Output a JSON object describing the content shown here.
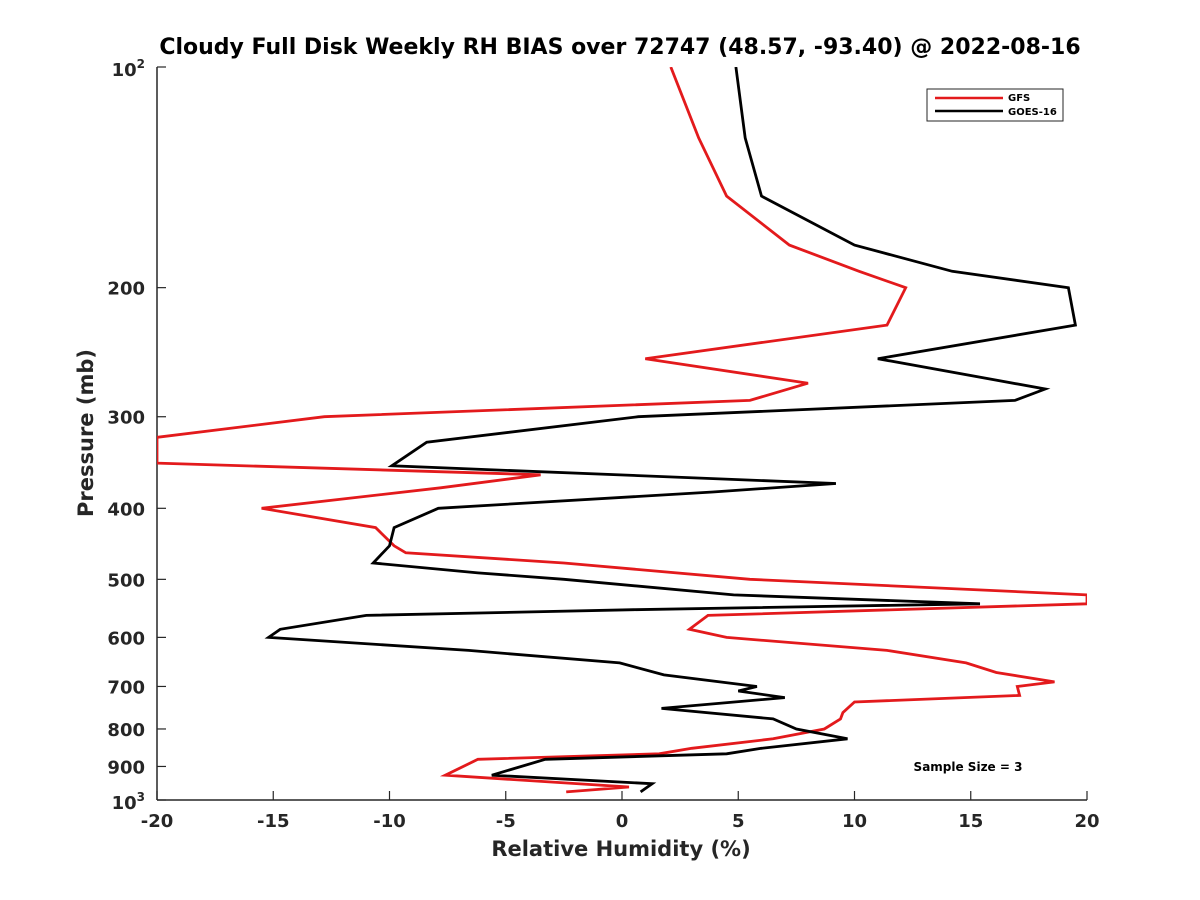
{
  "chart_data": {
    "type": "line",
    "title": "Cloudy Full Disk Weekly RH BIAS over 72747 (48.57, -93.40) @ 2022-08-16",
    "xlabel": "Relative Humidity (%)",
    "ylabel": "Pressure (mb)",
    "xlim": [
      -20,
      20
    ],
    "ylim": [
      100,
      1000
    ],
    "yscale": "log",
    "y_reversed": true,
    "grid": false,
    "legend_position": "top-right",
    "x_ticks": [
      -20,
      -15,
      -10,
      -5,
      0,
      5,
      10,
      15,
      20
    ],
    "x_tick_labels": [
      "-20",
      "-15",
      "-10",
      "-5",
      "0",
      "5",
      "10",
      "15",
      "20"
    ],
    "y_ticks": [
      100,
      200,
      300,
      400,
      500,
      600,
      700,
      800,
      900,
      1000
    ],
    "y_tick_labels": [
      "",
      "200",
      "300",
      "400",
      "500",
      "600",
      "700",
      "800",
      "900",
      ""
    ],
    "y_tick_power_labels": [
      {
        "value": 100,
        "base": "10",
        "exponent": "2"
      },
      {
        "value": 1000,
        "base": "10",
        "exponent": "3"
      }
    ],
    "annotation": "Sample Size = 3",
    "series": [
      {
        "name": "GFS",
        "color": "#e31a1c",
        "points": [
          {
            "x": 2.1,
            "p": 100
          },
          {
            "x": 3.3,
            "p": 125
          },
          {
            "x": 4.5,
            "p": 150
          },
          {
            "x": 7.2,
            "p": 175
          },
          {
            "x": 10.2,
            "p": 190
          },
          {
            "x": 12.2,
            "p": 200
          },
          {
            "x": 11.4,
            "p": 225
          },
          {
            "x": 1.0,
            "p": 250
          },
          {
            "x": 8.0,
            "p": 270
          },
          {
            "x": 5.5,
            "p": 285
          },
          {
            "x": -12.8,
            "p": 300
          },
          {
            "x": -20.0,
            "p": 320
          },
          {
            "x": -20.0,
            "p": 347
          },
          {
            "x": -3.5,
            "p": 360
          },
          {
            "x": -7.8,
            "p": 375
          },
          {
            "x": -15.5,
            "p": 400
          },
          {
            "x": -10.6,
            "p": 425
          },
          {
            "x": -9.8,
            "p": 450
          },
          {
            "x": -9.3,
            "p": 460
          },
          {
            "x": -2.5,
            "p": 475
          },
          {
            "x": 5.5,
            "p": 500
          },
          {
            "x": 20.0,
            "p": 525
          },
          {
            "x": 20.0,
            "p": 540
          },
          {
            "x": 3.7,
            "p": 560
          },
          {
            "x": 2.9,
            "p": 585
          },
          {
            "x": 4.5,
            "p": 600
          },
          {
            "x": 11.4,
            "p": 625
          },
          {
            "x": 14.8,
            "p": 650
          },
          {
            "x": 16.1,
            "p": 670
          },
          {
            "x": 18.6,
            "p": 690
          },
          {
            "x": 17.0,
            "p": 700
          },
          {
            "x": 17.1,
            "p": 720
          },
          {
            "x": 10.0,
            "p": 735
          },
          {
            "x": 9.5,
            "p": 760
          },
          {
            "x": 9.4,
            "p": 775
          },
          {
            "x": 8.7,
            "p": 800
          },
          {
            "x": 6.5,
            "p": 825
          },
          {
            "x": 3.0,
            "p": 850
          },
          {
            "x": 1.6,
            "p": 865
          },
          {
            "x": -6.2,
            "p": 880
          },
          {
            "x": -7.6,
            "p": 925
          },
          {
            "x": 0.3,
            "p": 960
          },
          {
            "x": -2.4,
            "p": 975
          }
        ]
      },
      {
        "name": "GOES-16",
        "color": "#000000",
        "points": [
          {
            "x": 4.9,
            "p": 100
          },
          {
            "x": 5.3,
            "p": 125
          },
          {
            "x": 6.0,
            "p": 150
          },
          {
            "x": 10.0,
            "p": 175
          },
          {
            "x": 14.2,
            "p": 190
          },
          {
            "x": 19.2,
            "p": 200
          },
          {
            "x": 19.5,
            "p": 225
          },
          {
            "x": 11.0,
            "p": 250
          },
          {
            "x": 18.2,
            "p": 275
          },
          {
            "x": 16.9,
            "p": 285
          },
          {
            "x": 0.7,
            "p": 300
          },
          {
            "x": -8.4,
            "p": 325
          },
          {
            "x": -9.9,
            "p": 350
          },
          {
            "x": 9.2,
            "p": 370
          },
          {
            "x": 3.9,
            "p": 380
          },
          {
            "x": -7.9,
            "p": 400
          },
          {
            "x": -9.8,
            "p": 425
          },
          {
            "x": -10.0,
            "p": 450
          },
          {
            "x": -10.7,
            "p": 475
          },
          {
            "x": -6.2,
            "p": 490
          },
          {
            "x": -2.5,
            "p": 500
          },
          {
            "x": 4.8,
            "p": 525
          },
          {
            "x": 15.4,
            "p": 540
          },
          {
            "x": 0.5,
            "p": 550
          },
          {
            "x": -11.0,
            "p": 560
          },
          {
            "x": -14.7,
            "p": 585
          },
          {
            "x": -15.2,
            "p": 600
          },
          {
            "x": -6.6,
            "p": 625
          },
          {
            "x": -0.1,
            "p": 650
          },
          {
            "x": 1.8,
            "p": 675
          },
          {
            "x": 5.8,
            "p": 700
          },
          {
            "x": 5.0,
            "p": 710
          },
          {
            "x": 7.0,
            "p": 725
          },
          {
            "x": 1.7,
            "p": 750
          },
          {
            "x": 6.5,
            "p": 775
          },
          {
            "x": 7.5,
            "p": 800
          },
          {
            "x": 9.7,
            "p": 825
          },
          {
            "x": 6.0,
            "p": 850
          },
          {
            "x": 4.5,
            "p": 865
          },
          {
            "x": -3.3,
            "p": 880
          },
          {
            "x": -5.6,
            "p": 925
          },
          {
            "x": 1.3,
            "p": 950
          },
          {
            "x": 0.8,
            "p": 975
          }
        ]
      }
    ]
  }
}
